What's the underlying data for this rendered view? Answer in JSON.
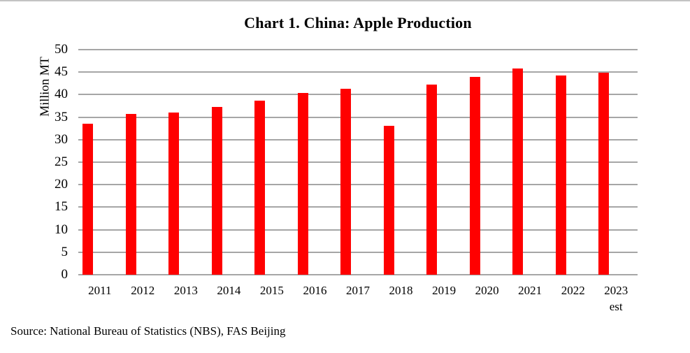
{
  "chart_data": {
    "type": "bar",
    "title": "Chart 1. China: Apple Production",
    "ylabel": "Million MT",
    "xlabel": "",
    "categories": [
      "2011",
      "2012",
      "2013",
      "2014",
      "2015",
      "2016",
      "2017",
      "2018",
      "2019",
      "2020",
      "2021",
      "2022",
      "2023"
    ],
    "category_sublabels": [
      "",
      "",
      "",
      "",
      "",
      "",
      "",
      "",
      "",
      "",
      "",
      "",
      "est"
    ],
    "values": [
      33.5,
      35.7,
      36.1,
      37.2,
      38.7,
      40.4,
      41.3,
      33.0,
      42.3,
      43.9,
      45.8,
      44.3,
      44.8
    ],
    "ylim": [
      0,
      50
    ],
    "ytick_step": 5,
    "yticks": [
      0,
      5,
      10,
      15,
      20,
      25,
      30,
      35,
      40,
      45,
      50
    ],
    "grid": true,
    "legend_position": "none",
    "bar_color": "#ff0000",
    "gridline_color": "#a6a6a6",
    "source": "Source: National Bureau of Statistics (NBS), FAS Beijing"
  }
}
